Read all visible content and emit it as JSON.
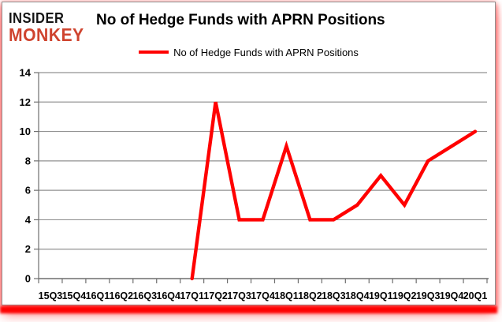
{
  "brand": {
    "line1": "INSIDER",
    "line2": "MONKEY"
  },
  "header": {
    "title": "No of Hedge Funds with APRN Positions"
  },
  "colors": {
    "line": "#ff0000",
    "brand_red": "#cf432e",
    "grid": "#929292",
    "axis": "#6f6f6f",
    "text": "#000000",
    "glow": "#ff0000",
    "card_border": "#8f8f8f",
    "background": "#ffffff"
  },
  "chart_data": {
    "type": "line",
    "title": "No of Hedge Funds with APRN Positions",
    "categories": [
      "15Q3",
      "15Q4",
      "16Q1",
      "16Q2",
      "16Q3",
      "16Q4",
      "17Q1",
      "17Q2",
      "17Q3",
      "17Q4",
      "18Q1",
      "18Q2",
      "18Q3",
      "18Q4",
      "19Q1",
      "19Q2",
      "19Q3",
      "19Q4",
      "20Q1"
    ],
    "series": [
      {
        "name": "No of Hedge Funds with APRN Positions",
        "color": "#ff0000",
        "values": [
          null,
          null,
          null,
          null,
          null,
          null,
          0,
          12,
          4,
          4,
          9,
          4,
          4,
          5,
          7,
          5,
          8,
          9,
          10
        ]
      }
    ],
    "xlabel": "",
    "ylabel": "",
    "ylim": [
      0,
      14
    ],
    "yticks": [
      0,
      2,
      4,
      6,
      8,
      10,
      12,
      14
    ],
    "grid": true,
    "legend_position": "top-center"
  }
}
